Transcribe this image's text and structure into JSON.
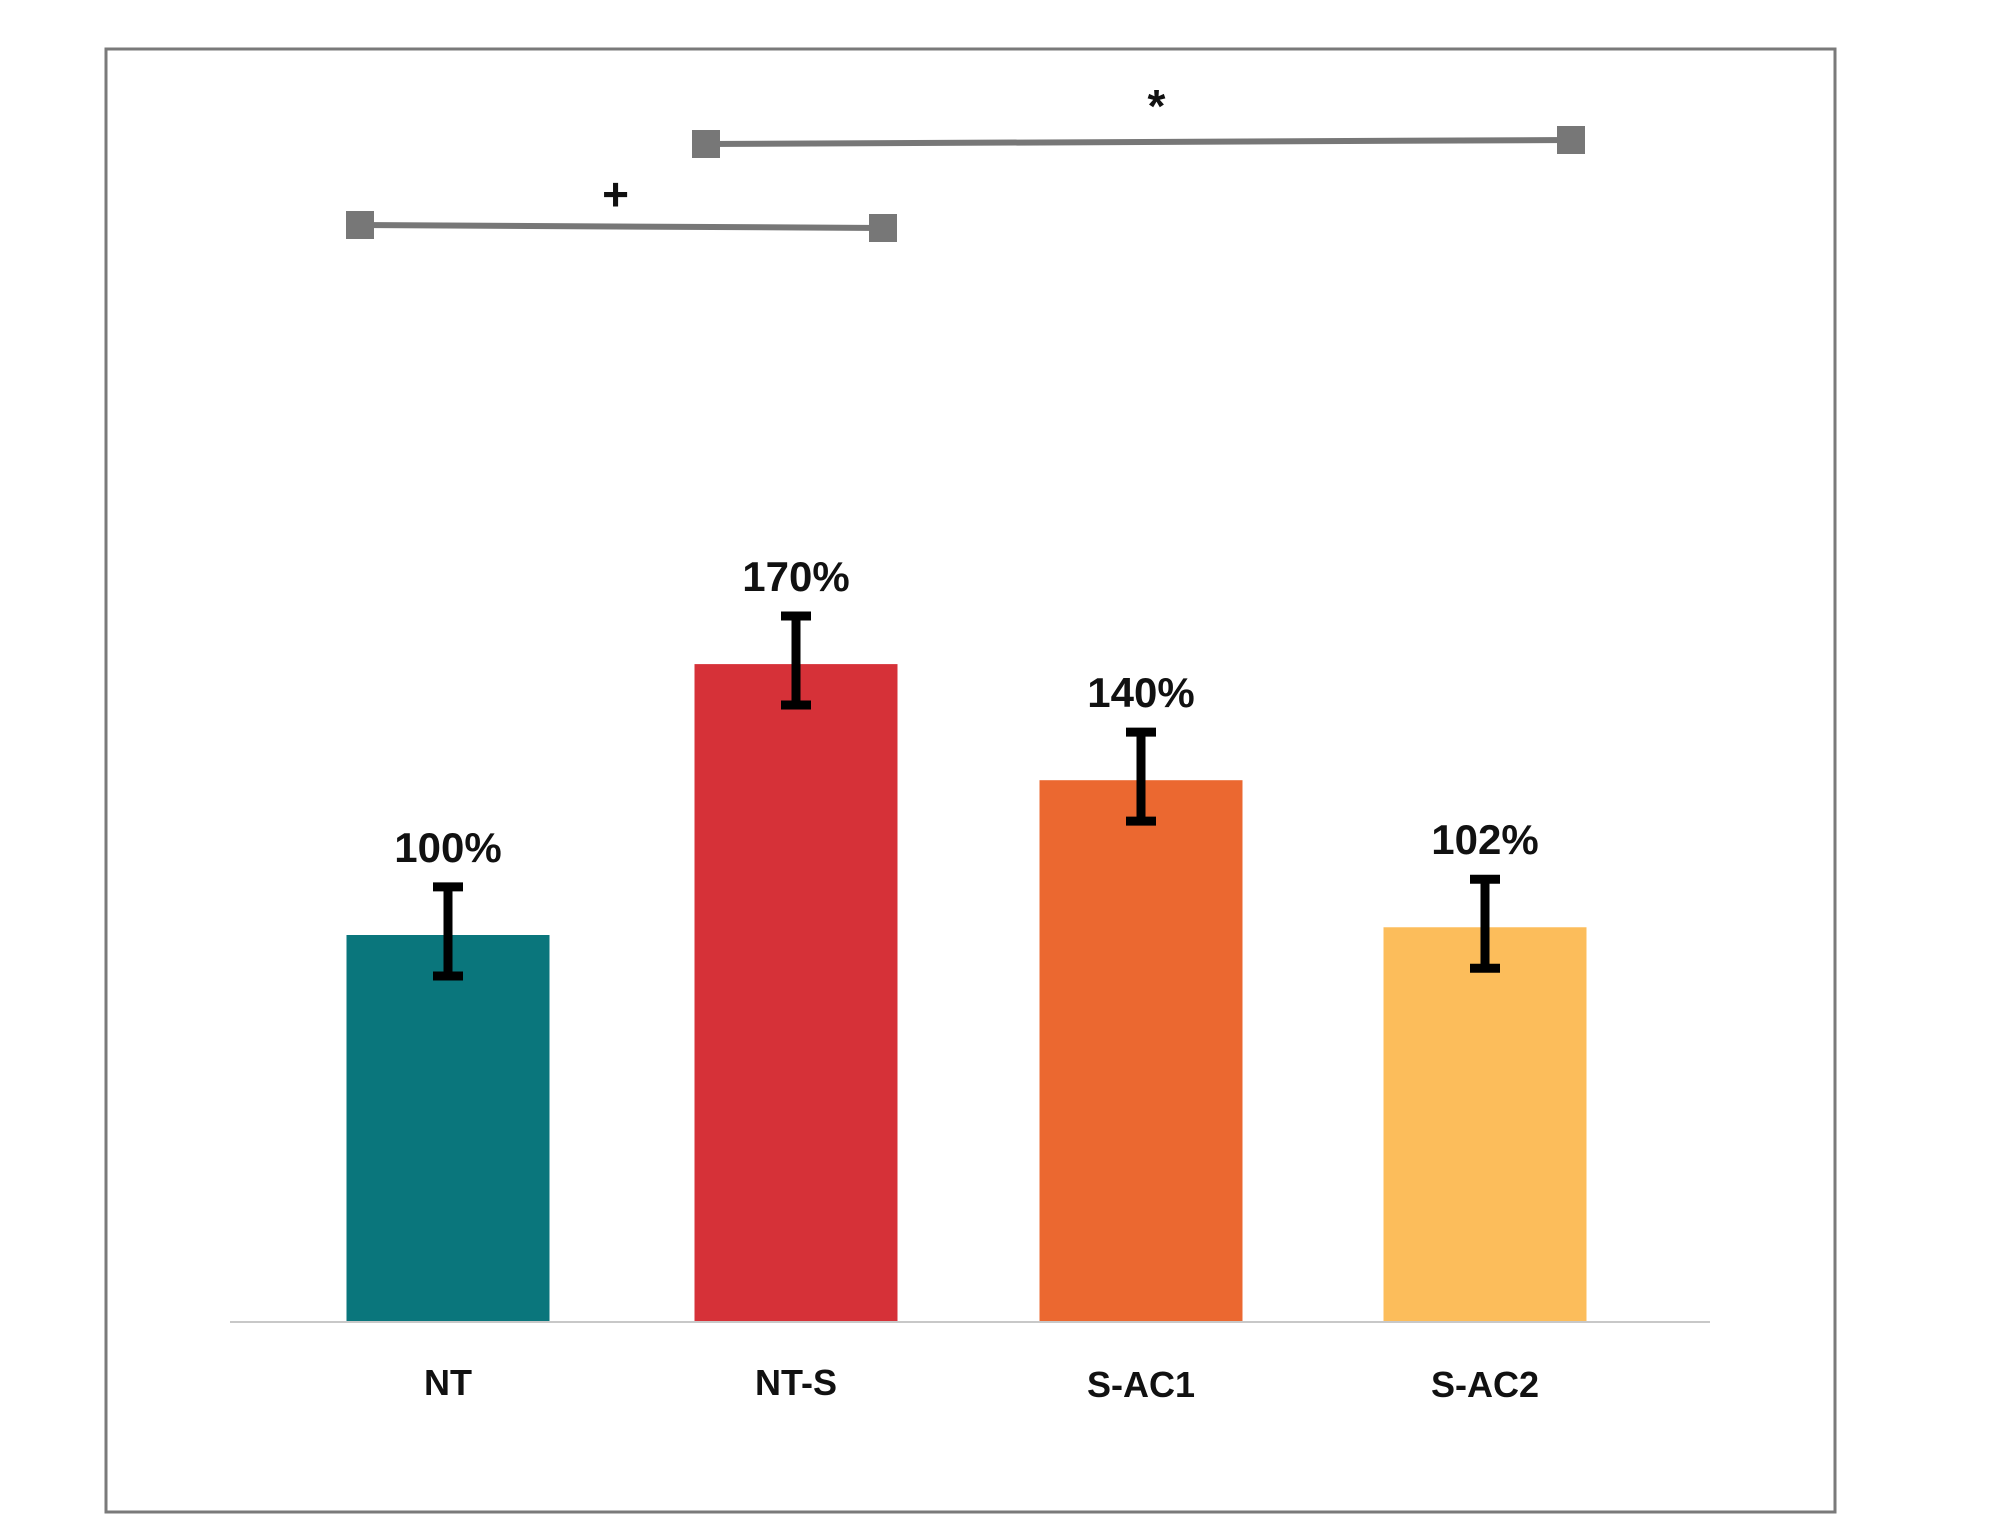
{
  "chart_data": {
    "type": "bar",
    "title": "",
    "xlabel": "",
    "ylabel": "",
    "categories": [
      "NT",
      "NT-S",
      "S-AC1",
      "S-AC2"
    ],
    "values": [
      100,
      170,
      140,
      102
    ],
    "value_labels": [
      "100%",
      "170%",
      "140%",
      "102%"
    ],
    "error": [
      23,
      23,
      23,
      23
    ],
    "colors": [
      "#0a767c",
      "#d63138",
      "#eb6830",
      "#fcbd5b"
    ],
    "ylim": [
      0,
      220
    ],
    "grid": false,
    "legend": "none",
    "significance": [
      {
        "from": "NT",
        "to": "NT-S",
        "label": "+"
      },
      {
        "from": "NT-S",
        "to": "S-AC2",
        "label": "*"
      }
    ]
  }
}
